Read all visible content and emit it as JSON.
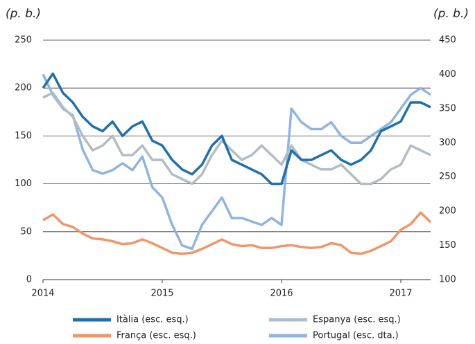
{
  "chart_data": {
    "type": "line",
    "ylabel": "(p. b.)",
    "y2label": "(p. b.)",
    "x": [
      2014.0,
      2014.083,
      2014.167,
      2014.25,
      2014.333,
      2014.417,
      2014.5,
      2014.583,
      2014.667,
      2014.75,
      2014.833,
      2014.917,
      2015.0,
      2015.083,
      2015.167,
      2015.25,
      2015.333,
      2015.417,
      2015.5,
      2015.583,
      2015.667,
      2015.75,
      2015.833,
      2015.917,
      2016.0,
      2016.083,
      2016.167,
      2016.25,
      2016.333,
      2016.417,
      2016.5,
      2016.583,
      2016.667,
      2016.75,
      2016.833,
      2016.917,
      2017.0,
      2017.083,
      2017.167,
      2017.25
    ],
    "xlim": [
      2014,
      2017.25
    ],
    "xticks": [
      2014,
      2015,
      2016,
      2017
    ],
    "ylim": [
      0,
      250
    ],
    "yticks": [
      0,
      50,
      100,
      150,
      200,
      250
    ],
    "y2lim": [
      100,
      450
    ],
    "y2ticks": [
      100,
      150,
      200,
      250,
      300,
      350,
      400,
      450
    ],
    "grid": true,
    "series": [
      {
        "name": "Itàlia (esc. esq.)",
        "color": "#1f6fb0",
        "values": [
          200,
          215,
          195,
          185,
          170,
          160,
          155,
          165,
          150,
          160,
          165,
          145,
          140,
          125,
          115,
          110,
          120,
          140,
          150,
          125,
          120,
          115,
          110,
          100,
          100,
          135,
          125,
          125,
          130,
          135,
          125,
          120,
          125,
          135,
          155,
          160,
          165,
          185,
          185,
          180
        ]
      },
      {
        "name": "Espanya (esc. esq.)",
        "color": "#b3bcc2",
        "values": [
          190,
          195,
          180,
          170,
          150,
          135,
          140,
          150,
          130,
          130,
          140,
          125,
          125,
          110,
          105,
          100,
          110,
          130,
          145,
          135,
          125,
          130,
          140,
          130,
          120,
          140,
          125,
          120,
          115,
          115,
          120,
          110,
          100,
          100,
          105,
          115,
          120,
          140,
          135,
          130
        ]
      },
      {
        "name": "França (esc. esq.)",
        "color": "#f0956a",
        "values": [
          62,
          68,
          58,
          55,
          48,
          43,
          42,
          40,
          37,
          38,
          42,
          38,
          33,
          28,
          27,
          28,
          32,
          37,
          42,
          37,
          35,
          36,
          33,
          33,
          35,
          36,
          34,
          33,
          34,
          38,
          36,
          28,
          27,
          30,
          35,
          40,
          52,
          58,
          70,
          60
        ]
      },
      {
        "name": "Portugal (esc. dta.)",
        "color": "#8fb4e3",
        "axis": "y2",
        "values": [
          400,
          370,
          350,
          340,
          290,
          260,
          255,
          260,
          270,
          260,
          280,
          235,
          220,
          180,
          150,
          145,
          180,
          200,
          220,
          190,
          190,
          185,
          180,
          190,
          180,
          350,
          330,
          320,
          320,
          330,
          310,
          300,
          300,
          310,
          320,
          330,
          350,
          370,
          380,
          370
        ]
      }
    ]
  }
}
